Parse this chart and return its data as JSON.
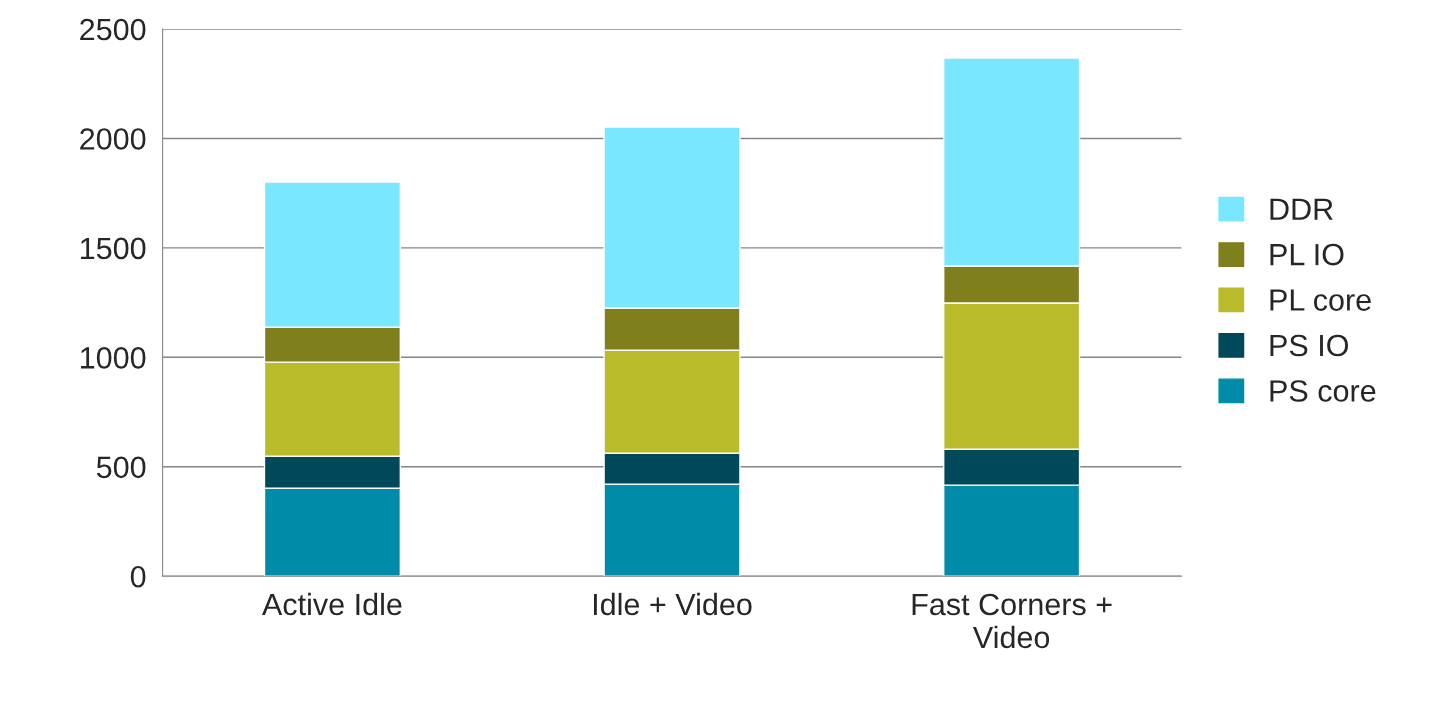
{
  "chart_data": {
    "type": "bar",
    "stacked": true,
    "categories": [
      "Active Idle",
      "Idle + Video",
      "Fast Corners + Video"
    ],
    "series": [
      {
        "name": "PS core",
        "color": "#008ca8",
        "values": [
          402,
          420,
          416
        ]
      },
      {
        "name": "PS IO",
        "color": "#00495a",
        "values": [
          146,
          142,
          164
        ]
      },
      {
        "name": "PL core",
        "color": "#b9bb2a",
        "values": [
          430,
          471,
          668
        ]
      },
      {
        "name": "PL IO",
        "color": "#7f7f1d",
        "values": [
          160,
          192,
          169
        ]
      },
      {
        "name": "DDR",
        "color": "#78e7ff",
        "values": [
          663,
          827,
          950
        ]
      }
    ],
    "ylim": [
      0,
      2500
    ],
    "yticks": [
      0,
      500,
      1000,
      1500,
      2000,
      2500
    ],
    "grid": "y",
    "legend": "right"
  }
}
